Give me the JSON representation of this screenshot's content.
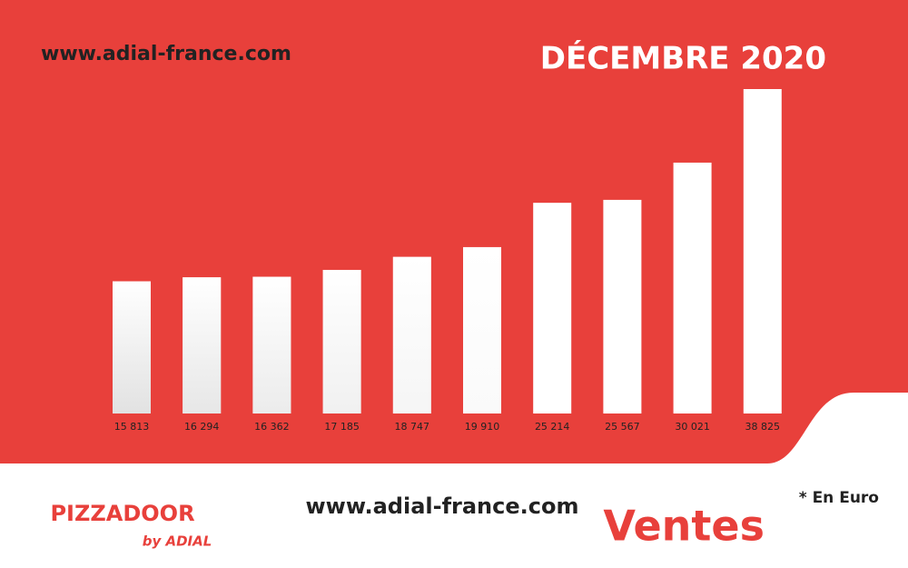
{
  "chart_data": {
    "type": "bar",
    "title": "DÉCEMBRE 2020",
    "values": [
      15813,
      16294,
      16362,
      17185,
      18747,
      19910,
      25214,
      25567,
      30021,
      38825
    ],
    "value_labels": [
      "15 813",
      "16 294",
      "16 362",
      "17 185",
      "18 747",
      "19 910",
      "25 214",
      "25 567",
      "30 021",
      "38 825"
    ],
    "color": "#ffffff"
  },
  "header": {
    "url": "www.adial-france.com"
  },
  "footer": {
    "url": "www.adial-france.com",
    "label": "Ventes",
    "note": "* En Euro"
  },
  "logo": {
    "name": "PIZZADOOR",
    "tagline": "by ADIAL"
  }
}
